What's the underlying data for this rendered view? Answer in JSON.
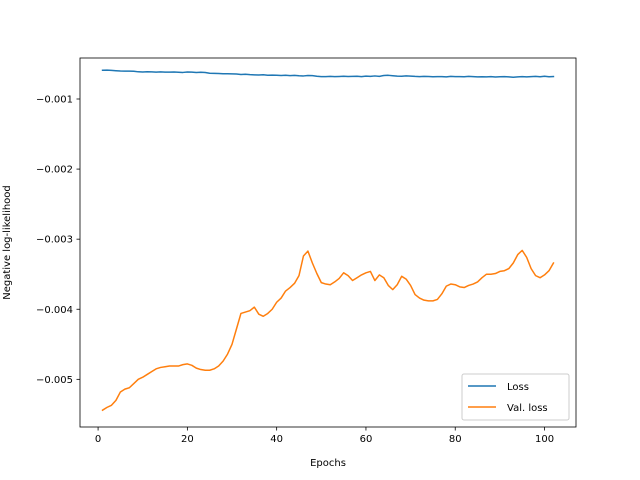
{
  "chart_data": {
    "type": "line",
    "xlabel": "Epochs",
    "ylabel": "Negative log-likelihood",
    "xlim": [
      -4.05,
      107.05
    ],
    "ylim": [
      -0.00568,
      -0.000415
    ],
    "xticks": [
      0,
      20,
      40,
      60,
      80,
      100
    ],
    "xtick_labels": [
      "0",
      "20",
      "40",
      "60",
      "80",
      "100"
    ],
    "yticks": [
      -0.005,
      -0.004,
      -0.003,
      -0.002,
      -0.001
    ],
    "ytick_labels": [
      "−0.005",
      "−0.004",
      "−0.003",
      "−0.002",
      "−0.001"
    ],
    "grid": false,
    "legend_position": "lower right",
    "series": [
      {
        "name": "Loss",
        "color": "#1f77b4",
        "x": [
          1,
          2,
          3,
          4,
          5,
          6,
          7,
          8,
          9,
          10,
          11,
          12,
          13,
          14,
          15,
          16,
          17,
          18,
          19,
          20,
          21,
          22,
          23,
          24,
          25,
          26,
          27,
          28,
          29,
          30,
          31,
          32,
          33,
          34,
          35,
          36,
          37,
          38,
          39,
          40,
          41,
          42,
          43,
          44,
          45,
          46,
          47,
          48,
          49,
          50,
          51,
          52,
          53,
          54,
          55,
          56,
          57,
          58,
          59,
          60,
          61,
          62,
          63,
          64,
          65,
          66,
          67,
          68,
          69,
          70,
          71,
          72,
          73,
          74,
          75,
          76,
          77,
          78,
          79,
          80,
          81,
          82,
          83,
          84,
          85,
          86,
          87,
          88,
          89,
          90,
          91,
          92,
          93,
          94,
          95,
          96,
          97,
          98,
          99,
          100,
          101,
          102
        ],
        "values": [
          -0.00059,
          -0.000588,
          -0.000592,
          -0.000596,
          -0.0006,
          -0.000602,
          -0.000603,
          -0.000604,
          -0.000612,
          -0.000614,
          -0.000611,
          -0.000613,
          -0.000616,
          -0.000613,
          -0.000616,
          -0.000617,
          -0.000615,
          -0.000618,
          -0.000621,
          -0.000615,
          -0.000616,
          -0.000621,
          -0.000619,
          -0.000622,
          -0.000632,
          -0.000634,
          -0.000636,
          -0.000639,
          -0.00064,
          -0.000641,
          -0.000643,
          -0.00065,
          -0.000647,
          -0.000652,
          -0.000655,
          -0.000657,
          -0.000654,
          -0.000661,
          -0.000659,
          -0.000661,
          -0.000664,
          -0.000662,
          -0.000666,
          -0.000663,
          -0.000668,
          -0.000671,
          -0.000664,
          -0.000667,
          -0.000675,
          -0.00068,
          -0.00068,
          -0.000678,
          -0.000681,
          -0.000679,
          -0.000676,
          -0.000679,
          -0.000678,
          -0.000676,
          -0.00068,
          -0.000674,
          -0.000677,
          -0.000671,
          -0.000677,
          -0.000665,
          -0.000662,
          -0.000668,
          -0.000673,
          -0.000675,
          -0.00067,
          -0.000673,
          -0.000678,
          -0.00068,
          -0.000677,
          -0.000679,
          -0.000682,
          -0.00068,
          -0.000681,
          -0.000684,
          -0.000678,
          -0.00068,
          -0.000681,
          -0.000683,
          -0.000677,
          -0.00068,
          -0.000685,
          -0.000683,
          -0.000684,
          -0.000681,
          -0.000686,
          -0.000682,
          -0.000681,
          -0.000684,
          -0.000689,
          -0.000684,
          -0.00068,
          -0.000685,
          -0.000681,
          -0.000677,
          -0.000683,
          -0.000676,
          -0.000683,
          -0.000679
        ]
      },
      {
        "name": "Val. loss",
        "color": "#ff7f0e",
        "x": [
          1,
          2,
          3,
          4,
          5,
          6,
          7,
          8,
          9,
          10,
          11,
          12,
          13,
          14,
          15,
          16,
          17,
          18,
          19,
          20,
          21,
          22,
          23,
          24,
          25,
          26,
          27,
          28,
          29,
          30,
          31,
          32,
          33,
          34,
          35,
          36,
          37,
          38,
          39,
          40,
          41,
          42,
          43,
          44,
          45,
          46,
          47,
          48,
          49,
          50,
          51,
          52,
          53,
          54,
          55,
          56,
          57,
          58,
          59,
          60,
          61,
          62,
          63,
          64,
          65,
          66,
          67,
          68,
          69,
          70,
          71,
          72,
          73,
          74,
          75,
          76,
          77,
          78,
          79,
          80,
          81,
          82,
          83,
          84,
          85,
          86,
          87,
          88,
          89,
          90,
          91,
          92,
          93,
          94,
          95,
          96,
          97,
          98,
          99,
          100,
          101,
          102
        ],
        "values": [
          -0.00544,
          -0.0054,
          -0.00537,
          -0.0053,
          -0.00518,
          -0.00514,
          -0.00512,
          -0.00506,
          -0.005,
          -0.00497,
          -0.00493,
          -0.00489,
          -0.00485,
          -0.00483,
          -0.00482,
          -0.00481,
          -0.00481,
          -0.00481,
          -0.00479,
          -0.00478,
          -0.0048,
          -0.00484,
          -0.00486,
          -0.00487,
          -0.00487,
          -0.00485,
          -0.00481,
          -0.00474,
          -0.00464,
          -0.0045,
          -0.00428,
          -0.00406,
          -0.00404,
          -0.00402,
          -0.00397,
          -0.00407,
          -0.0041,
          -0.00406,
          -0.004,
          -0.0039,
          -0.00384,
          -0.00374,
          -0.00369,
          -0.00363,
          -0.00352,
          -0.00324,
          -0.00317,
          -0.00334,
          -0.00349,
          -0.00362,
          -0.00364,
          -0.00365,
          -0.00361,
          -0.00356,
          -0.00348,
          -0.00352,
          -0.00359,
          -0.00355,
          -0.00351,
          -0.00348,
          -0.00346,
          -0.00359,
          -0.00351,
          -0.00355,
          -0.00366,
          -0.00372,
          -0.00365,
          -0.00353,
          -0.00357,
          -0.00366,
          -0.00379,
          -0.00384,
          -0.00387,
          -0.00388,
          -0.00388,
          -0.00386,
          -0.00378,
          -0.00367,
          -0.00364,
          -0.00365,
          -0.00368,
          -0.00369,
          -0.00366,
          -0.00364,
          -0.00361,
          -0.00355,
          -0.0035,
          -0.0035,
          -0.00349,
          -0.00346,
          -0.00345,
          -0.00342,
          -0.00334,
          -0.00322,
          -0.00316,
          -0.00326,
          -0.00342,
          -0.00352,
          -0.00355,
          -0.00351,
          -0.00345,
          -0.00334
        ]
      }
    ]
  }
}
